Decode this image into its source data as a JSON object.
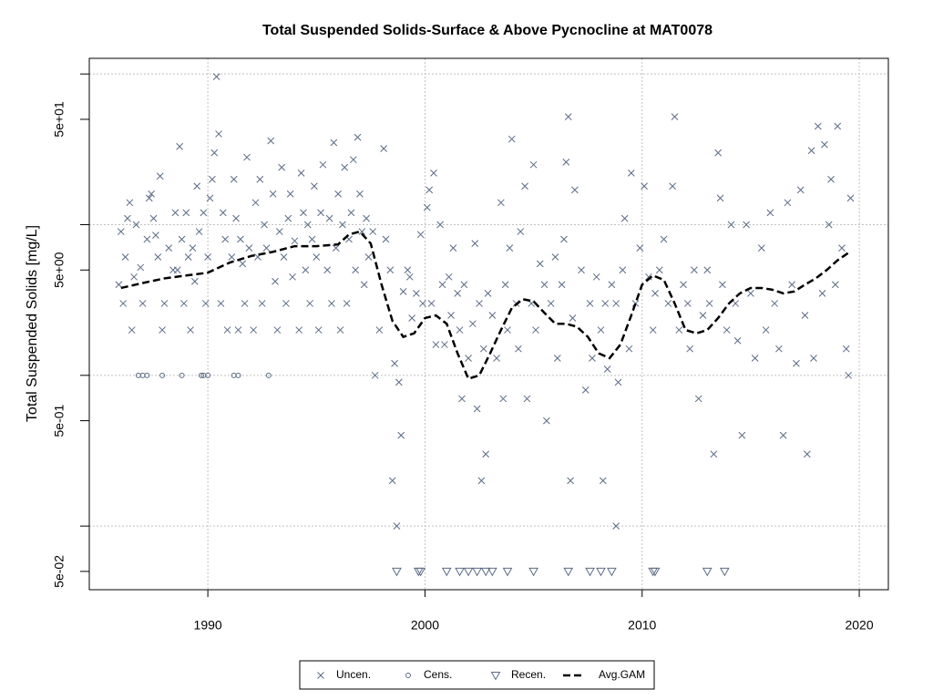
{
  "chart_data": {
    "type": "scatter",
    "title": "Total Suspended Solids-Surface & Above Pycnocline at MAT0078",
    "y_label": "Total Suspended Solids [mg/L]",
    "xlim": [
      1984.54,
      2021.34
    ],
    "xticks": [
      1990,
      2000,
      2010,
      2020
    ],
    "ylim": [
      0.0378,
      127
    ],
    "log_y": true,
    "yticks": [
      {
        "value": 0.05,
        "label": "5e-02"
      },
      {
        "value": 0.5,
        "label": "5e-01"
      },
      {
        "value": 5,
        "label": "5e+00"
      },
      {
        "value": 50,
        "label": "5e+01"
      }
    ],
    "yminor_ticks": [
      0.1,
      1,
      10,
      100
    ],
    "grid": true,
    "legend": "bottom",
    "series": [
      {
        "name": "Uncen.",
        "mark": "x",
        "color": "#5b6b85",
        "x": [
          1985.9,
          1986.0,
          1986.1,
          1986.2,
          1986.3,
          1986.4,
          1986.5,
          1986.6,
          1986.7,
          1986.9,
          1987.0,
          1987.2,
          1987.3,
          1987.4,
          1987.5,
          1987.6,
          1987.7,
          1987.8,
          1987.9,
          1988.0,
          1988.2,
          1988.4,
          1988.5,
          1988.6,
          1988.7,
          1988.8,
          1988.9,
          1989.0,
          1989.1,
          1989.2,
          1989.3,
          1989.4,
          1989.5,
          1989.6,
          1989.8,
          1989.9,
          1990.0,
          1990.1,
          1990.2,
          1990.3,
          1990.4,
          1990.5,
          1990.6,
          1990.7,
          1990.8,
          1990.9,
          1991.1,
          1991.2,
          1991.3,
          1991.4,
          1991.5,
          1991.6,
          1991.7,
          1991.8,
          1991.9,
          1992.1,
          1992.2,
          1992.3,
          1992.4,
          1992.5,
          1992.6,
          1992.7,
          1992.9,
          1993.0,
          1993.1,
          1993.2,
          1993.3,
          1993.4,
          1993.5,
          1993.6,
          1993.7,
          1993.8,
          1993.9,
          1994.0,
          1994.2,
          1994.3,
          1994.4,
          1994.5,
          1994.6,
          1994.7,
          1994.8,
          1994.9,
          1995.0,
          1995.1,
          1995.2,
          1995.3,
          1995.5,
          1995.6,
          1995.7,
          1995.8,
          1995.9,
          1996.0,
          1996.1,
          1996.2,
          1996.3,
          1996.4,
          1996.5,
          1996.6,
          1996.7,
          1996.8,
          1996.9,
          1997.0,
          1997.1,
          1997.2,
          1997.3,
          1997.4,
          1997.6,
          1997.7,
          1997.9,
          1998.1,
          1998.2,
          1998.4,
          1998.5,
          1998.6,
          1998.7,
          1998.8,
          1998.9,
          1999.0,
          1999.2,
          1999.3,
          1999.4,
          1999.6,
          1999.8,
          1999.9,
          2000.1,
          2000.2,
          2000.3,
          2000.4,
          2000.5,
          2000.7,
          2000.8,
          2000.9,
          2001.1,
          2001.2,
          2001.3,
          2001.5,
          2001.6,
          2001.7,
          2001.8,
          2002.0,
          2002.2,
          2002.3,
          2002.4,
          2002.5,
          2002.6,
          2002.7,
          2002.8,
          2002.9,
          2003.1,
          2003.3,
          2003.5,
          2003.6,
          2003.7,
          2003.8,
          2003.9,
          2004.0,
          2004.2,
          2004.3,
          2004.4,
          2004.6,
          2004.7,
          2004.9,
          2005.0,
          2005.1,
          2005.3,
          2005.5,
          2005.6,
          2005.8,
          2006.0,
          2006.1,
          2006.3,
          2006.4,
          2006.5,
          2006.6,
          2006.8,
          2006.9,
          2007.2,
          2007.4,
          2007.6,
          2007.7,
          2007.9,
          2008.1,
          2008.3,
          2008.4,
          2008.6,
          2008.8,
          2008.9,
          2009.1,
          2009.2,
          2009.4,
          2009.5,
          2009.7,
          2009.9,
          2010.1,
          2010.3,
          2010.5,
          2010.6,
          2010.8,
          2011.0,
          2011.2,
          2011.4,
          2011.5,
          2011.7,
          2011.9,
          2012.1,
          2012.2,
          2012.4,
          2012.6,
          2012.8,
          2013.0,
          2013.1,
          2013.3,
          2013.5,
          2013.6,
          2013.7,
          2013.9,
          2014.1,
          2014.3,
          2014.4,
          2014.6,
          2014.8,
          2015.0,
          2015.2,
          2015.5,
          2015.7,
          2015.9,
          2016.1,
          2016.3,
          2016.5,
          2016.7,
          2016.9,
          2017.1,
          2017.3,
          2017.5,
          2017.6,
          2017.8,
          2017.9,
          2018.1,
          2018.3,
          2018.4,
          2018.6,
          2018.7,
          2018.9,
          2019.0,
          2019.2,
          2019.4,
          2019.5,
          2019.6,
          2006.7,
          2008.2,
          2008.8
        ],
        "values": [
          4.0,
          9.0,
          3.0,
          6.1,
          11,
          14,
          2.0,
          4.5,
          10,
          5.2,
          3.0,
          8.0,
          15,
          16,
          11,
          8.5,
          6.1,
          21,
          2.0,
          3.0,
          7.0,
          5.0,
          12,
          5.0,
          33,
          8.0,
          3.0,
          12,
          6.1,
          2.0,
          7.0,
          4.2,
          18,
          9.0,
          12,
          3.0,
          6.1,
          15,
          20,
          30,
          96,
          40,
          3.0,
          12,
          8.0,
          2.0,
          6.1,
          20,
          11,
          2.0,
          8.0,
          5.5,
          3.0,
          28,
          7.0,
          2.0,
          14,
          6.1,
          20,
          3.0,
          10,
          7.0,
          36,
          16,
          4.2,
          2.0,
          9.0,
          24,
          6.1,
          3.0,
          11,
          16,
          4.5,
          7.8,
          2.0,
          22,
          12,
          5.0,
          10,
          3.0,
          8.0,
          18,
          6.1,
          2.0,
          12,
          25,
          5.0,
          11,
          3.0,
          35,
          7.0,
          16,
          2.0,
          10,
          24,
          3.0,
          8.0,
          12,
          27,
          5.0,
          38,
          16,
          9.0,
          4.0,
          11,
          6.1,
          9.0,
          1.0,
          2.0,
          32,
          8.0,
          5.0,
          0.2,
          1.2,
          0.1,
          0.9,
          0.4,
          3.6,
          5.0,
          4.5,
          2.4,
          3.5,
          8.6,
          3.0,
          13,
          17,
          3.0,
          22,
          1.6,
          10,
          4.0,
          1.6,
          4.5,
          2.5,
          7.0,
          3.5,
          2.0,
          0.7,
          4.0,
          1.3,
          2.2,
          7.5,
          0.6,
          3.0,
          0.2,
          1.5,
          0.3,
          3.5,
          2.5,
          1.3,
          14,
          0.7,
          4.0,
          2.0,
          7.0,
          37,
          3.0,
          1.5,
          9.0,
          18,
          0.7,
          3.0,
          25,
          2.0,
          5.5,
          4.0,
          0.5,
          3.0,
          6.1,
          1.3,
          4.0,
          8.0,
          26,
          52,
          2.4,
          17,
          5.0,
          0.8,
          3.0,
          1.3,
          4.5,
          2.0,
          3.0,
          1.1,
          4.0,
          3.0,
          0.9,
          5.0,
          11,
          1.5,
          22,
          3.0,
          7.0,
          18,
          4.5,
          2.0,
          3.5,
          5.0,
          8.0,
          3.0,
          18,
          52,
          2.0,
          4.0,
          3.0,
          1.5,
          5.0,
          0.7,
          2.5,
          5.0,
          3.0,
          0.3,
          30,
          15,
          4.0,
          2.0,
          10,
          3.0,
          1.7,
          0.4,
          10,
          3.5,
          1.3,
          7.0,
          2.0,
          12,
          3.0,
          1.5,
          0.4,
          14,
          4.0,
          1.2,
          17,
          2.5,
          0.3,
          31,
          1.3,
          45,
          3.5,
          34,
          10,
          20,
          4.0,
          45,
          7.0,
          1.5,
          1.0,
          15,
          0.2,
          0.2,
          0.1
        ]
      },
      {
        "name": "Cens.",
        "mark": "circle",
        "color": "#5b6b85",
        "x": [
          1986.8,
          1987.0,
          1987.2,
          1987.9,
          1988.8,
          1989.7,
          1989.8,
          1990.0,
          1991.2,
          1991.4,
          1992.8
        ],
        "values": [
          1.0,
          1.0,
          1.0,
          1.0,
          1.0,
          1.0,
          1.0,
          1.0,
          1.0,
          1.0,
          1.0
        ]
      },
      {
        "name": "Recen.",
        "mark": "triangle",
        "color": "#5b6b85",
        "x": [
          1998.7,
          1999.7,
          1999.8,
          2001.0,
          2001.6,
          2002.0,
          2002.4,
          2002.8,
          2003.1,
          2003.8,
          2005.0,
          2006.6,
          2007.6,
          2008.1,
          2008.6,
          2010.5,
          2010.6,
          2013.0,
          2013.8
        ],
        "values": [
          0.05,
          0.05,
          0.05,
          0.05,
          0.05,
          0.05,
          0.05,
          0.05,
          0.05,
          0.05,
          0.05,
          0.05,
          0.05,
          0.05,
          0.05,
          0.05,
          0.05,
          0.05,
          0.05
        ]
      },
      {
        "name": "Avg.GAM",
        "mark": "line",
        "color": "#000000",
        "x": [
          1986,
          1987,
          1988,
          1989,
          1990,
          1991,
          1992,
          1993,
          1994,
          1995,
          1996,
          1996.5,
          1997,
          1997.5,
          1998,
          1998.5,
          1999,
          1999.5,
          2000,
          2000.5,
          2001,
          2001.5,
          2002,
          2002.5,
          2003,
          2003.5,
          2004,
          2004.5,
          2005,
          2005.5,
          2006,
          2006.5,
          2007,
          2007.5,
          2008,
          2008.5,
          2009,
          2009.5,
          2010,
          2010.5,
          2011,
          2011.5,
          2012,
          2012.5,
          2013,
          2013.5,
          2014,
          2014.5,
          2015,
          2015.5,
          2016,
          2016.5,
          2017,
          2017.5,
          2018,
          2018.5,
          2019,
          2019.5
        ],
        "values": [
          3.8,
          4.1,
          4.4,
          4.6,
          4.8,
          5.6,
          6.2,
          6.6,
          7.2,
          7.2,
          7.4,
          8.6,
          9.0,
          7.5,
          4.0,
          2.3,
          1.8,
          1.9,
          2.4,
          2.5,
          2.2,
          1.4,
          0.95,
          1.0,
          1.4,
          2.0,
          2.8,
          3.2,
          3.1,
          2.6,
          2.2,
          2.2,
          2.1,
          1.8,
          1.4,
          1.3,
          1.6,
          2.5,
          4.0,
          4.6,
          4.3,
          3.0,
          2.0,
          1.9,
          2.0,
          2.4,
          3.0,
          3.5,
          3.8,
          3.8,
          3.7,
          3.5,
          3.6,
          4.0,
          4.4,
          5.0,
          5.8,
          6.5
        ]
      }
    ]
  }
}
